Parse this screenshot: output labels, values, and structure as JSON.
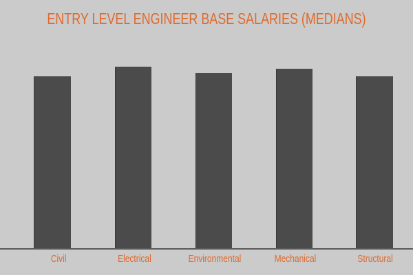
{
  "chart_data": {
    "type": "bar",
    "title": "ENTRY LEVEL ENGINEER BASE SALARIES (MEDIANS)",
    "xlabel": "",
    "ylabel": "",
    "categories": [
      "Civil",
      "Electrical",
      "Environmental",
      "Mechanical",
      "Structural"
    ],
    "values": [
      250,
      264,
      255,
      261,
      250
    ],
    "value_units": "relative bar height (no y-axis scale shown)",
    "ylim": [
      0,
      290
    ],
    "grid": false,
    "legend": null,
    "colors": {
      "background": "#cbcbcb",
      "bar": "#4b4b4b",
      "text": "#e0692b",
      "axis": "#5a5a5a"
    }
  }
}
